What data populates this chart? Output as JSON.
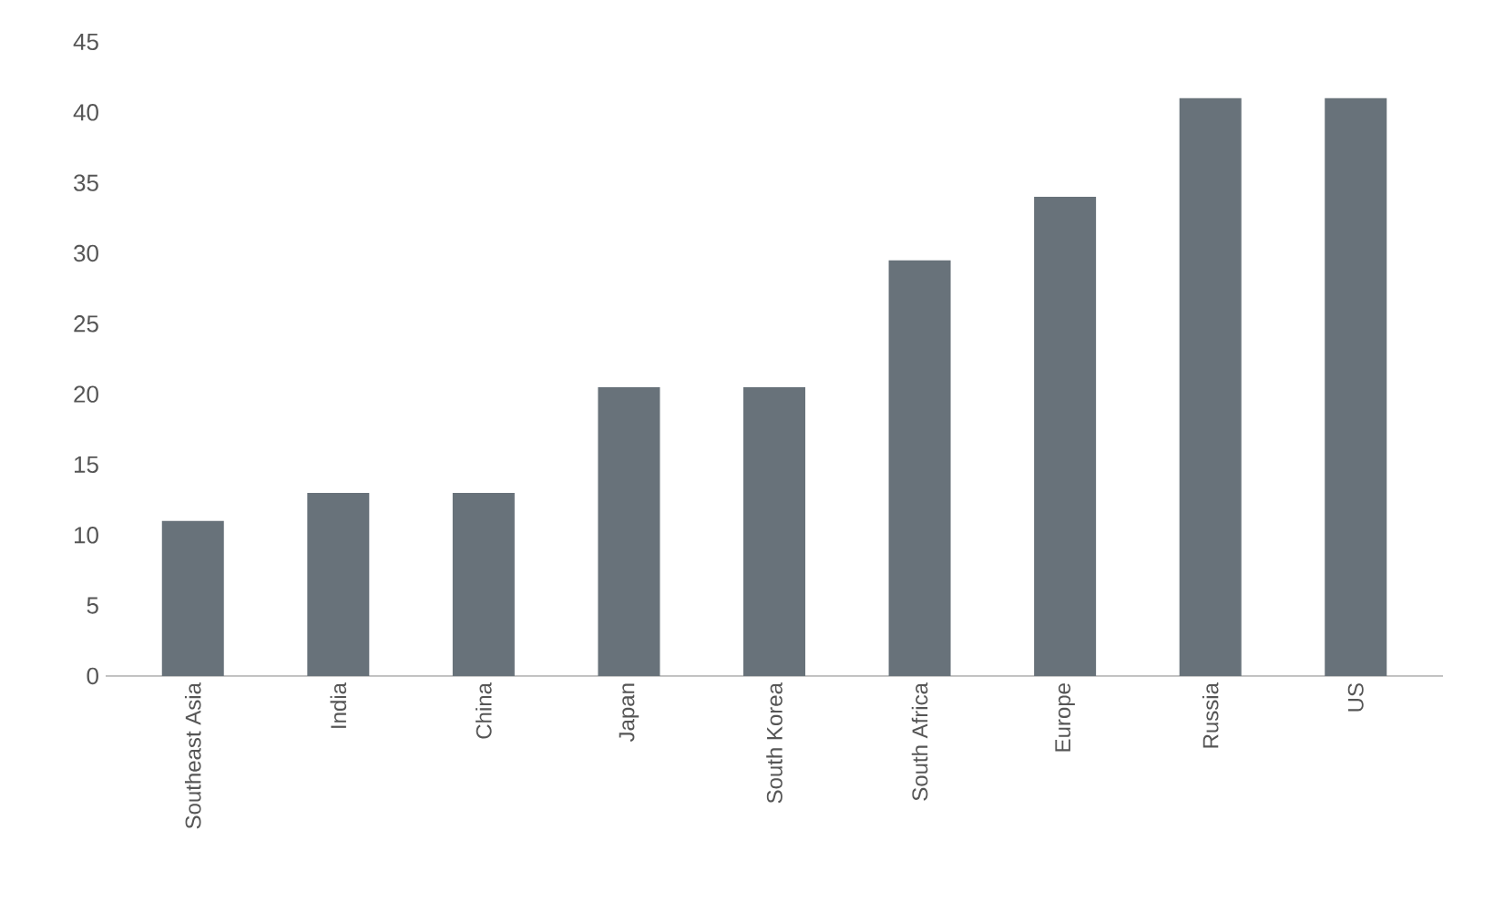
{
  "chart_data": {
    "type": "bar",
    "categories": [
      "Southeast Asia",
      "India",
      "China",
      "Japan",
      "South Korea",
      "South Africa",
      "Europe",
      "Russia",
      "US"
    ],
    "values": [
      11,
      13,
      13,
      20.5,
      20.5,
      29.5,
      34,
      41,
      41
    ],
    "color": "#68727a",
    "ylim": [
      0,
      45
    ],
    "yticks": [
      0,
      5,
      10,
      15,
      20,
      25,
      30,
      35,
      40,
      45
    ]
  }
}
